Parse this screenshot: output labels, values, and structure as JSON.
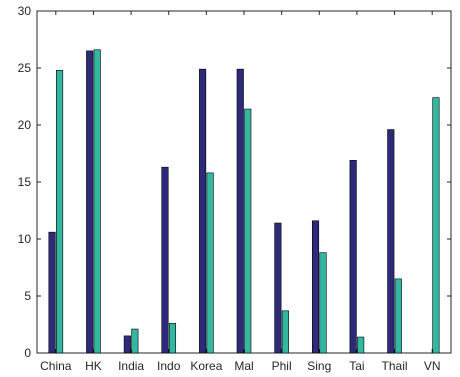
{
  "chart_data": {
    "type": "bar",
    "categories": [
      "China",
      "HK",
      "India",
      "Indo",
      "Korea",
      "Mal",
      "Phil",
      "Sing",
      "Tai",
      "Thail",
      "VN"
    ],
    "series": [
      {
        "values": [
          10.6,
          26.5,
          1.5,
          16.3,
          24.9,
          24.9,
          11.4,
          11.6,
          16.9,
          19.6,
          0
        ],
        "color": "#2e2a7a"
      },
      {
        "values": [
          24.8,
          26.6,
          2.1,
          2.6,
          15.8,
          21.4,
          3.7,
          8.8,
          1.4,
          6.5,
          22.4
        ],
        "color": "#33b7a0"
      }
    ],
    "ylim": [
      0,
      30
    ],
    "yticks": [
      0,
      5,
      10,
      15,
      20,
      25,
      30
    ],
    "grid": false,
    "title": "",
    "xlabel": "",
    "ylabel": ""
  }
}
